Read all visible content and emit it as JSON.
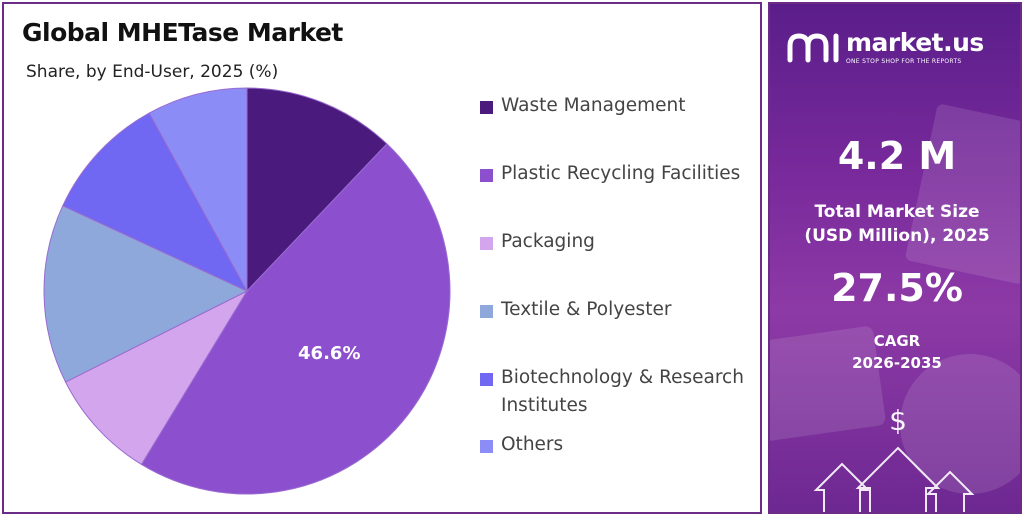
{
  "title": "Global MHETase Market",
  "subtitle": "Share, by End-User, 2025 (%)",
  "chart_data": {
    "type": "pie",
    "categories": [
      "Waste Management",
      "Plastic Recycling Facilities",
      "Packaging",
      "Textile & Polyester",
      "Biotechnology & Research Institutes",
      "Others"
    ],
    "values": [
      12.1,
      46.6,
      8.9,
      14.3,
      10.1,
      8.0
    ],
    "colors": [
      "#4a1a7c",
      "#8c4fce",
      "#d3a5ec",
      "#8ea8dc",
      "#7067f3",
      "#8c8cf7"
    ],
    "data_labels": [
      "",
      "46.6%",
      "",
      "",
      "",
      ""
    ],
    "legend_position": "right"
  },
  "legend": [
    {
      "label": "Waste Management",
      "color": "#4a1a7c"
    },
    {
      "label": "Plastic Recycling Facilities",
      "color": "#8c4fce"
    },
    {
      "label": "Packaging",
      "color": "#d3a5ec"
    },
    {
      "label": "Textile & Polyester",
      "color": "#8ea8dc"
    },
    {
      "label": "Biotechnology & Research Institutes",
      "color": "#7067f3"
    },
    {
      "label": "Others",
      "color": "#8c8cf7"
    }
  ],
  "sidebar": {
    "brand_name": "market.us",
    "brand_tagline": "ONE STOP SHOP FOR THE REPORTS",
    "market_size_value": "4.2 M",
    "market_size_label_line1": "Total Market Size",
    "market_size_label_line2": "(USD Million), 2025",
    "cagr_value": "27.5%",
    "cagr_label_line1": "CAGR",
    "cagr_label_line2": "2026-2035",
    "dollar_icon": "dollar-icon",
    "arrow_icons": "arrow-up-icon"
  },
  "colors": {
    "panel_border": "#6b2b86",
    "sidebar_gradient_top": "#5a1e8a",
    "sidebar_gradient_bottom": "#6e2892"
  }
}
